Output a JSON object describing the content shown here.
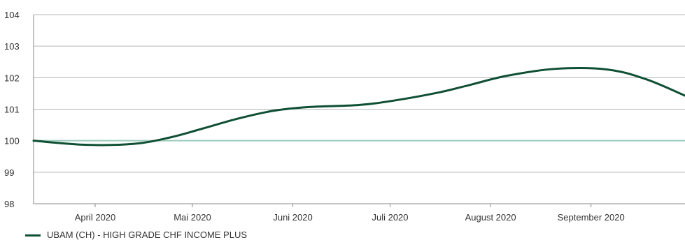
{
  "chart_data": {
    "type": "line",
    "title": "",
    "xlabel": "",
    "ylabel": "",
    "ylim": [
      98,
      104
    ],
    "yticks": [
      98,
      99,
      100,
      101,
      102,
      103,
      104
    ],
    "xlim": [
      "2020-03-13",
      "2020-09-30"
    ],
    "x_ticks": [
      {
        "date": "2020-04-01",
        "label": "April 2020"
      },
      {
        "date": "2020-05-01",
        "label": "Mai 2020"
      },
      {
        "date": "2020-06-01",
        "label": "Juni 2020"
      },
      {
        "date": "2020-07-01",
        "label": "Juli 2020"
      },
      {
        "date": "2020-08-01",
        "label": "August 2020"
      },
      {
        "date": "2020-09-01",
        "label": "September 2020"
      }
    ],
    "grid": "horizontal",
    "baseline": 100,
    "series": [
      {
        "name": "UBAM (CH) - HIGH GRADE CHF INCOME PLUS",
        "color": "#0f4f34",
        "x": [
          "2020-03-13",
          "2020-03-29",
          "2020-04-13",
          "2020-04-24",
          "2020-05-04",
          "2020-05-15",
          "2020-05-26",
          "2020-06-06",
          "2020-06-21",
          "2020-07-02",
          "2020-07-16",
          "2020-07-26",
          "2020-08-06",
          "2020-08-21",
          "2020-09-06",
          "2020-09-18",
          "2020-09-30"
        ],
        "values": [
          100.0,
          99.87,
          99.9,
          100.1,
          100.38,
          100.7,
          100.95,
          101.07,
          101.13,
          101.27,
          101.53,
          101.78,
          102.06,
          102.28,
          102.26,
          101.95,
          101.43
        ]
      }
    ],
    "colors": {
      "line": "#0f4f34",
      "baseline": "#9ccbbc",
      "grid": "#b7b7b7",
      "axis": "#8a8a8a",
      "text": "#333333"
    }
  }
}
